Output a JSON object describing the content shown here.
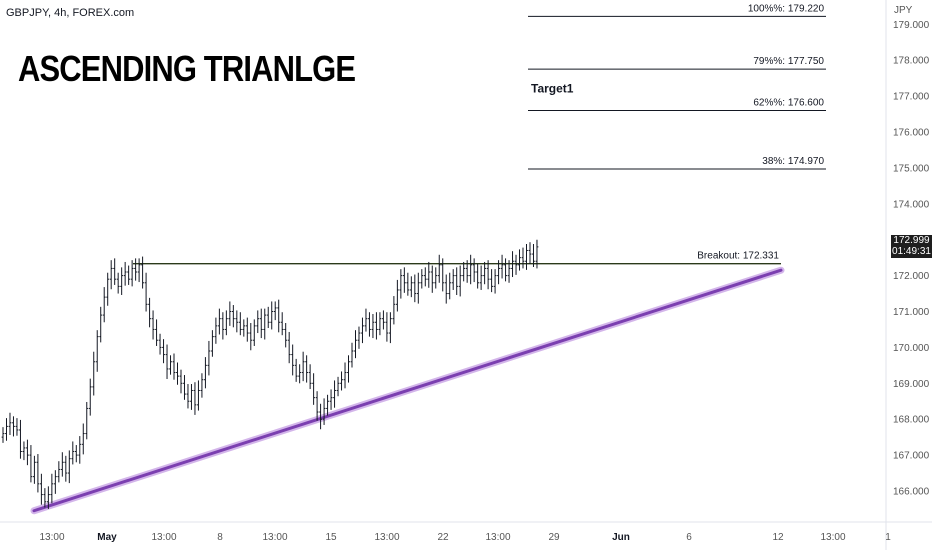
{
  "header": {
    "symbol": "GBPJPY, 4h, FOREX.com",
    "title": "ASCENDING TRIANLGE",
    "currency": "JPY"
  },
  "last_price": {
    "price": "172.999",
    "countdown": "01:49:31"
  },
  "colors": {
    "candle": "#131722",
    "trendline": "#7b3fb0",
    "trendline_glow": "#c9a3e6",
    "breakout_line": "#2b3a1a",
    "fib_line": "#131722",
    "axis_text": "#555555",
    "price_tag_bg": "#1e1e1e"
  },
  "chart_data": {
    "type": "candlestick",
    "title": "ASCENDING TRIANLGE",
    "ylabel": "JPY",
    "ylim": [
      165.6,
      179.3
    ],
    "y_ticks": [
      "166.000",
      "167.000",
      "168.000",
      "169.000",
      "170.000",
      "171.000",
      "172.000",
      "173.000",
      "174.000",
      "175.000",
      "176.000",
      "177.000",
      "178.000",
      "179.000"
    ],
    "x_ticks": [
      "13:00",
      "May",
      "13:00",
      "8",
      "13:00",
      "15",
      "13:00",
      "22",
      "13:00",
      "29",
      "Jun",
      "6",
      "12",
      "13:00",
      "1"
    ],
    "levels": [
      {
        "label": "100%%: 179.220",
        "value": 179.22
      },
      {
        "label": "79%%: 177.750",
        "value": 177.75
      },
      {
        "label": "62%%: 176.600",
        "value": 176.6
      },
      {
        "label": "38%: 174.970",
        "value": 174.97
      }
    ],
    "annotations": [
      {
        "label": "Target1",
        "value": 177.1
      },
      {
        "label": "Breakout: 172.331",
        "value": 172.331
      }
    ],
    "breakout": {
      "label": "Breakout: 172.331",
      "value": 172.331
    },
    "trendline": {
      "start_price": 165.45,
      "end_price": 172.15
    },
    "close_series": [
      167.6,
      167.8,
      167.9,
      167.8,
      167.7,
      167.1,
      167.2,
      167.0,
      166.4,
      166.8,
      166.2,
      165.9,
      165.7,
      165.9,
      166.2,
      166.4,
      166.6,
      166.8,
      166.5,
      166.9,
      167.1,
      167.0,
      167.3,
      167.6,
      168.3,
      168.9,
      169.6,
      170.3,
      170.9,
      171.4,
      171.9,
      172.2,
      171.9,
      171.7,
      172.0,
      172.1,
      171.9,
      172.2,
      172.1,
      172.3,
      171.8,
      171.2,
      170.8,
      170.5,
      170.2,
      170.0,
      169.8,
      169.4,
      169.6,
      169.3,
      169.2,
      169.0,
      168.7,
      168.5,
      168.8,
      168.4,
      168.8,
      169.1,
      169.5,
      169.9,
      170.3,
      170.6,
      170.8,
      170.5,
      170.8,
      171.0,
      170.8,
      170.7,
      170.5,
      170.6,
      170.4,
      170.2,
      170.6,
      170.8,
      170.5,
      170.9,
      170.7,
      171.0,
      171.1,
      170.7,
      170.5,
      170.2,
      169.8,
      169.5,
      169.2,
      169.3,
      169.6,
      169.3,
      169.0,
      168.6,
      168.2,
      168.0,
      168.3,
      168.5,
      168.6,
      168.8,
      169.0,
      169.1,
      169.3,
      169.6,
      169.9,
      170.2,
      170.4,
      170.6,
      170.8,
      170.5,
      170.7,
      170.5,
      170.8,
      170.7,
      170.4,
      170.8,
      171.2,
      171.6,
      172.0,
      171.8,
      171.6,
      171.8,
      171.5,
      171.8,
      172.0,
      171.9,
      172.1,
      171.8,
      172.0,
      172.3,
      171.8,
      171.5,
      171.8,
      172.0,
      171.7,
      172.0,
      172.2,
      172.0,
      172.3,
      172.1,
      171.8,
      172.0,
      172.2,
      171.9,
      171.7,
      172.0,
      172.2,
      172.3,
      172.0,
      172.2,
      172.4,
      172.3,
      172.5,
      172.4,
      172.7,
      172.6,
      172.4,
      172.8
    ]
  }
}
